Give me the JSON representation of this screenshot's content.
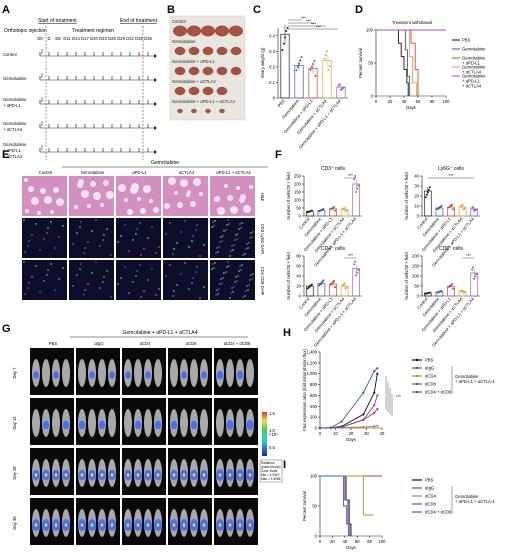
{
  "panels": {
    "A": {
      "label": "A",
      "top_labels": [
        "Start of treatment",
        "End of treatment"
      ],
      "injection_label": "Orthotopic injection",
      "regimen_label": "Treatment regimen",
      "days": [
        "D0",
        "D",
        "D6",
        "D11",
        "D14",
        "D17",
        "D20",
        "D23",
        "D26",
        "D29",
        "D32",
        "D35",
        "D38"
      ],
      "rows": [
        "Control",
        "Gemcitabine",
        "Gemcitabine + αPD-L1",
        "Gemcitabine + αCTLA4",
        "Gemcitabine + αPD-L1 + αCTLA4"
      ]
    },
    "B": {
      "label": "B",
      "groups": [
        "Control",
        "Gemcitabine",
        "Gemcitabine + αPD-L1",
        "Gemcitabine + αCTLA4",
        "Gemcitabine + αPD-L1 + αCTLA4"
      ]
    },
    "C": {
      "label": "C",
      "ylabel": "Ovary weight (g)",
      "yticks": [
        "0",
        "0.1",
        "0.2",
        "0.3",
        "0.4"
      ],
      "sig": [
        "***",
        "***",
        "***",
        "***"
      ]
    },
    "D": {
      "label": "D",
      "title": "Treatment withdrawal",
      "ylabel": "Percent survival",
      "xlabel": "Days",
      "yticks": [
        "0",
        "50",
        "100"
      ],
      "xticks": [
        "0",
        "20",
        "40",
        "60",
        "80",
        "100"
      ]
    },
    "E": {
      "label": "E",
      "group_header": "Gemcitabine",
      "columns": [
        "Control",
        "Gemcitabine",
        "αPD-L1",
        "αCTLA4",
        "αPD-L1 + αCTLA4"
      ],
      "row_labels": [
        "H&E",
        "CD3 Ly6G DAPI",
        "CD4 CD8 DAPI"
      ]
    },
    "F": {
      "label": "F",
      "subplots": [
        {
          "title": "CD3⁺ cells",
          "ylabel": "Number of cells/20 × field",
          "yticks": [
            "0",
            "50",
            "100",
            "150",
            "200",
            "250"
          ],
          "sig": "***"
        },
        {
          "title": "Ly6G⁺ cells",
          "ylabel": "Number of cells/20 × field",
          "yticks": [
            "0",
            "10",
            "20",
            "30",
            "40"
          ],
          "sig": "***"
        },
        {
          "title": "CD4⁺ cells",
          "ylabel": "Number of cells/20 × field",
          "yticks": [
            "0",
            "20",
            "40",
            "60",
            "80"
          ],
          "sig": "***"
        },
        {
          "title": "CD8⁺ cells",
          "ylabel": "Number of cells/20 × field",
          "yticks": [
            "0",
            "50",
            "100",
            "150",
            "200"
          ],
          "sig": "***"
        }
      ],
      "xcats": [
        "Control",
        "Gemcitabine",
        "Gemcitabine + αPD-L1",
        "Gemcitabine + αCTLA4",
        "Gemcitabine + αPD-L1 + αCTLA4"
      ]
    },
    "G": {
      "label": "G",
      "header": "Gemcitabine + αPD-L1 + αCTLA4",
      "columns": [
        "PBS",
        "αIgG",
        "αCD4",
        "αCD8",
        "αCD4 + αCD8"
      ],
      "rows": [
        "Day 7",
        "Day 14",
        "Day 28",
        "Day 35"
      ],
      "colorbar_ticks": [
        "1.5",
        "1.0",
        "0.5"
      ],
      "colorbar_unit": "×10⁶",
      "colorbar_note": [
        "Radiance",
        "(p/sec/cm²/sr)",
        "Color Scale",
        "Min = 4.00e7",
        "Max = 1.50e8"
      ]
    },
    "H": {
      "label": "H",
      "ylabel": "Fluc expression ratio (fold initial photon flux)",
      "xlabel": "Days",
      "sig": "***"
    },
    "I": {
      "label": "I",
      "ylabel": "Percent survival",
      "xlabel": "Days"
    },
    "legend_HI": {
      "items": [
        "PBS",
        "αIgG",
        "αCD4",
        "αCD8",
        "αCD4 + αCD8"
      ],
      "bracket_label": "Gemcitabine + αPD-L1 + αCTLA-4"
    }
  },
  "colors": {
    "pbs": "#111111",
    "igg": "#d93030",
    "cd4": "#c98a22",
    "cd8": "#7a3fbf",
    "cd48": "#2d63c8",
    "gem": "#3a56c8",
    "pdl1": "#d9443b",
    "ctla4": "#e8a23a",
    "combo": "#9a57c9"
  },
  "chart_data": [
    {
      "panel": "C",
      "type": "bar",
      "categories": [
        "PBS",
        "Gemcitabine",
        "Gemcitabine + αPD-L1",
        "Gemcitabine + αCTLA4",
        "Gemcitabine + αPD-L1 + αCTLA4"
      ],
      "values": [
        0.41,
        0.21,
        0.19,
        0.24,
        0.07
      ],
      "ylim": [
        0,
        0.45
      ],
      "ylabel": "Ovary weight (g)"
    },
    {
      "panel": "D",
      "type": "line",
      "ylabel": "Percent survival",
      "xlabel": "Days",
      "xlim": [
        0,
        100
      ],
      "ylim": [
        0,
        100
      ],
      "series": [
        {
          "name": "PBS",
          "x": [
            0,
            27,
            32,
            36,
            40,
            44,
            46
          ],
          "y": [
            100,
            100,
            80,
            60,
            40,
            20,
            0
          ]
        },
        {
          "name": "Gemcitabine",
          "x": [
            0,
            40,
            42,
            45,
            48
          ],
          "y": [
            100,
            100,
            70,
            30,
            0
          ]
        },
        {
          "name": "Gemcitabine + αPD-L1",
          "x": [
            0,
            45,
            50,
            56,
            60
          ],
          "y": [
            100,
            100,
            80,
            40,
            0
          ]
        },
        {
          "name": "Gemcitabine + αCTLA4",
          "x": [
            0,
            43,
            48,
            52,
            58
          ],
          "y": [
            100,
            100,
            60,
            20,
            0
          ]
        },
        {
          "name": "Gemcitabine + αPD-L1 + αCTLA4",
          "x": [
            0,
            100
          ],
          "y": [
            100,
            100
          ]
        }
      ]
    },
    {
      "panel": "F-CD3",
      "type": "bar",
      "categories": [
        "Control",
        "Gemcitabine",
        "Gemcitabine + αPD-L1",
        "Gemcitabine + αCTLA4",
        "Gemcitabine + αPD-L1 + αCTLA4"
      ],
      "values": [
        30,
        35,
        45,
        40,
        200
      ],
      "ylim": [
        0,
        250
      ]
    },
    {
      "panel": "F-Ly6G",
      "type": "bar",
      "categories": [
        "Control",
        "Gemcitabine",
        "Gemcitabine + αPD-L1",
        "Gemcitabine + αCTLA4",
        "Gemcitabine + αPD-L1 + αCTLA4"
      ],
      "values": [
        25,
        8,
        9,
        9,
        7
      ],
      "ylim": [
        0,
        40
      ]
    },
    {
      "panel": "F-CD4",
      "type": "bar",
      "categories": [
        "Control",
        "Gemcitabine",
        "Gemcitabine + αPD-L1",
        "Gemcitabine + αCTLA4",
        "Gemcitabine + αPD-L1 + αCTLA4"
      ],
      "values": [
        20,
        25,
        24,
        20,
        55
      ],
      "ylim": [
        0,
        80
      ]
    },
    {
      "panel": "F-CD8",
      "type": "bar",
      "categories": [
        "Control",
        "Gemcitabine",
        "Gemcitabine + αPD-L1",
        "Gemcitabine + αCTLA4",
        "Gemcitabine + αPD-L1 + αCTLA4"
      ],
      "values": [
        15,
        20,
        48,
        22,
        115
      ],
      "ylim": [
        0,
        200
      ]
    },
    {
      "panel": "H",
      "type": "line",
      "xticks": [
        "0",
        "10",
        "20",
        "30",
        "40"
      ],
      "yticks": [
        "0",
        "200",
        "400",
        "600",
        "800",
        "1,000",
        "1,200",
        "1,400"
      ],
      "xlim": [
        0,
        40
      ],
      "ylim": [
        0,
        1400
      ],
      "series": [
        {
          "name": "PBS",
          "x": [
            0,
            7,
            14,
            28,
            35,
            37
          ],
          "y": [
            1,
            5,
            30,
            250,
            650,
            1000
          ]
        },
        {
          "name": "αIgG",
          "x": [
            0,
            7,
            14,
            28,
            35,
            37
          ],
          "y": [
            1,
            4,
            20,
            150,
            280,
            350
          ]
        },
        {
          "name": "αCD4",
          "x": [
            0,
            7,
            14,
            28,
            35,
            37
          ],
          "y": [
            1,
            3,
            10,
            20,
            30,
            40
          ]
        },
        {
          "name": "αCD8",
          "x": [
            0,
            7,
            14,
            28,
            35,
            37
          ],
          "y": [
            1,
            4,
            15,
            150,
            420,
            600
          ]
        },
        {
          "name": "αCD4 + αCD8",
          "x": [
            0,
            7,
            14,
            28,
            35,
            37
          ],
          "y": [
            1,
            8,
            120,
            650,
            1050,
            1100
          ]
        }
      ]
    },
    {
      "panel": "I",
      "type": "line",
      "xticks": [
        "0",
        "20",
        "40",
        "60",
        "80",
        "100"
      ],
      "yticks": [
        "0",
        "50",
        "100"
      ],
      "xlim": [
        0,
        100
      ],
      "ylim": [
        0,
        100
      ],
      "series": [
        {
          "name": "PBS",
          "x": [
            0,
            38,
            42,
            47,
            50
          ],
          "y": [
            100,
            100,
            60,
            20,
            0
          ]
        },
        {
          "name": "αIgG",
          "x": [
            0,
            100
          ],
          "y": [
            100,
            100
          ]
        },
        {
          "name": "αCD4",
          "x": [
            0,
            65,
            70,
            86
          ],
          "y": [
            100,
            100,
            35,
            35
          ]
        },
        {
          "name": "αCD8",
          "x": [
            0,
            34,
            38,
            43,
            46
          ],
          "y": [
            100,
            100,
            50,
            20,
            0
          ]
        },
        {
          "name": "αCD4 + αCD8",
          "x": [
            0,
            36,
            40,
            45,
            48
          ],
          "y": [
            100,
            100,
            60,
            20,
            0
          ]
        }
      ]
    }
  ]
}
